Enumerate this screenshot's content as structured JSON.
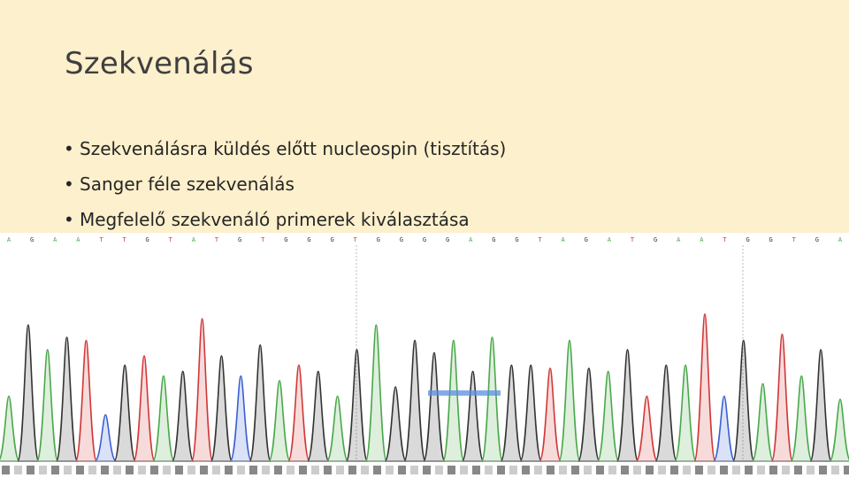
{
  "slide": {
    "title": "Szekvenálás",
    "bullets": [
      "Szekvenálásra küldés előtt nucleospin (tisztítás)",
      "Sanger féle szekvenálás",
      "Megfelelő szekvenáló primerek kiválasztása"
    ]
  },
  "chromatogram": {
    "bases": [
      "A",
      "G",
      "A",
      "A",
      "T",
      "T",
      "G",
      "T",
      "A",
      "T",
      "G",
      "T",
      "G",
      "G",
      "G",
      "T",
      "G",
      "G",
      "G",
      "G",
      "A",
      "G",
      "G",
      "T",
      "A",
      "G",
      "A",
      "T",
      "G",
      "A",
      "A",
      "T",
      "G",
      "G",
      "T",
      "G",
      "A"
    ],
    "colors": {
      "A": "#4aa84a",
      "C": "#3a5fd0",
      "G": "#333333",
      "T": "#d03838"
    },
    "peaks": [
      {
        "base": "A",
        "height": 0.42
      },
      {
        "base": "G",
        "height": 0.88
      },
      {
        "base": "A",
        "height": 0.72
      },
      {
        "base": "G",
        "height": 0.8
      },
      {
        "base": "T",
        "height": 0.78
      },
      {
        "base": "C",
        "height": 0.3
      },
      {
        "base": "G",
        "height": 0.62
      },
      {
        "base": "T",
        "height": 0.68
      },
      {
        "base": "A",
        "height": 0.55
      },
      {
        "base": "G",
        "height": 0.58
      },
      {
        "base": "T",
        "height": 0.92
      },
      {
        "base": "G",
        "height": 0.68
      },
      {
        "base": "C",
        "height": 0.55
      },
      {
        "base": "G",
        "height": 0.75
      },
      {
        "base": "A",
        "height": 0.52
      },
      {
        "base": "T",
        "height": 0.62
      },
      {
        "base": "G",
        "height": 0.58
      },
      {
        "base": "A",
        "height": 0.42
      },
      {
        "base": "G",
        "height": 0.72
      },
      {
        "base": "A",
        "height": 0.88
      },
      {
        "base": "G",
        "height": 0.48
      },
      {
        "base": "G",
        "height": 0.78
      },
      {
        "base": "G",
        "height": 0.7
      },
      {
        "base": "A",
        "height": 0.78
      },
      {
        "base": "G",
        "height": 0.58
      },
      {
        "base": "A",
        "height": 0.8
      },
      {
        "base": "G",
        "height": 0.62
      },
      {
        "base": "G",
        "height": 0.62
      },
      {
        "base": "T",
        "height": 0.6
      },
      {
        "base": "A",
        "height": 0.78
      },
      {
        "base": "G",
        "height": 0.6
      },
      {
        "base": "A",
        "height": 0.58
      },
      {
        "base": "G",
        "height": 0.72
      },
      {
        "base": "T",
        "height": 0.42
      },
      {
        "base": "G",
        "height": 0.62
      },
      {
        "base": "A",
        "height": 0.62
      },
      {
        "base": "T",
        "height": 0.95
      },
      {
        "base": "C",
        "height": 0.42
      },
      {
        "base": "G",
        "height": 0.78
      },
      {
        "base": "A",
        "height": 0.5
      },
      {
        "base": "T",
        "height": 0.82
      },
      {
        "base": "A",
        "height": 0.55
      },
      {
        "base": "G",
        "height": 0.72
      },
      {
        "base": "A",
        "height": 0.4
      }
    ]
  }
}
